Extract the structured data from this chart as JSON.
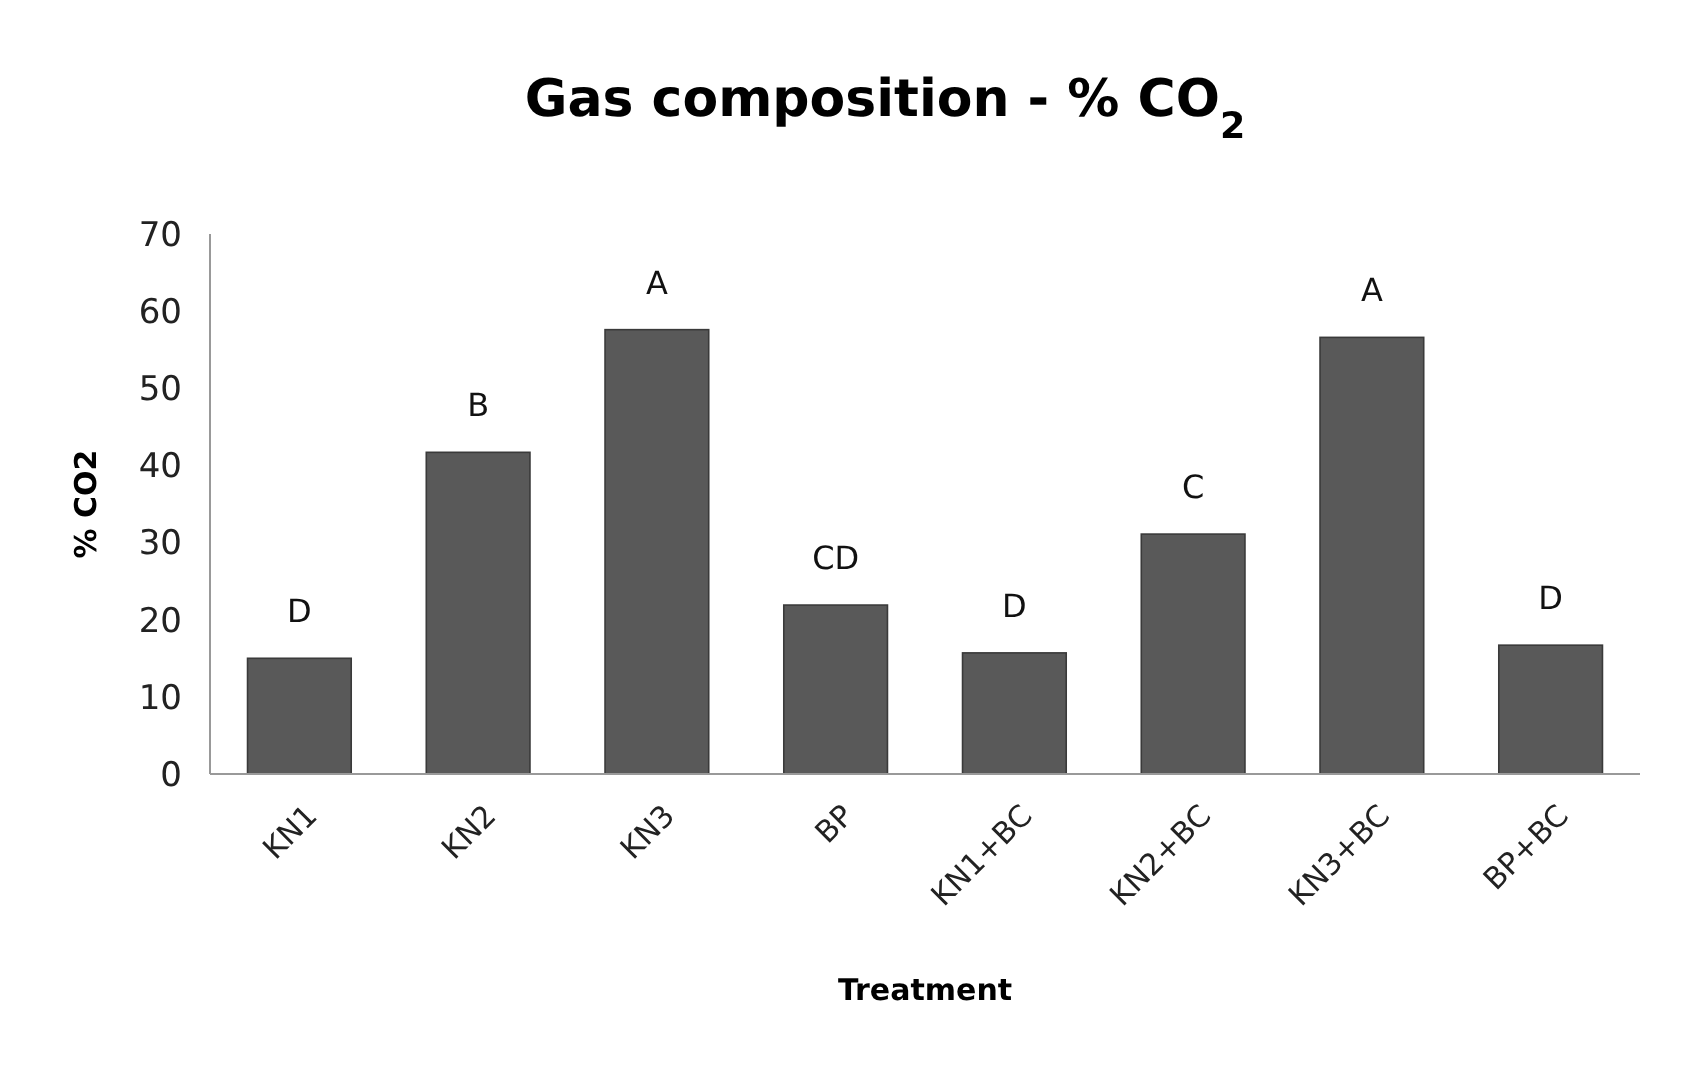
{
  "chart_data": {
    "type": "bar",
    "title": "Gas composition - % CO$_{2}$",
    "xlabel": "Treatment",
    "ylabel": "% CO2",
    "categories": [
      "KN1",
      "KN2",
      "KN3",
      "BP",
      "KN1+BC",
      "KN2+BC",
      "KN3+BC",
      "BP+BC"
    ],
    "values": [
      15,
      41.7,
      57.6,
      21.9,
      15.7,
      31.1,
      56.6,
      16.7
    ],
    "color": "#595959",
    "ylim": [
      0,
      70
    ],
    "yticks": [
      0,
      10,
      20,
      30,
      40,
      50,
      60,
      70
    ],
    "grid": false,
    "annotations": [
      {
        "text": "D",
        "x": "KN1",
        "y": 15
      },
      {
        "text": "B",
        "x": "KN2",
        "y": 41.7
      },
      {
        "text": "A",
        "x": "KN3",
        "y": 57.6
      },
      {
        "text": "CD",
        "x": "BP",
        "y": 21.9
      },
      {
        "text": "D",
        "x": "KN1+BC",
        "y": 15.7
      },
      {
        "text": "C",
        "x": "KN2+BC",
        "y": 31.1
      },
      {
        "text": "A",
        "x": "KN3+BC",
        "y": 56.6
      },
      {
        "text": "D",
        "x": "BP+BC",
        "y": 16.7
      }
    ]
  }
}
